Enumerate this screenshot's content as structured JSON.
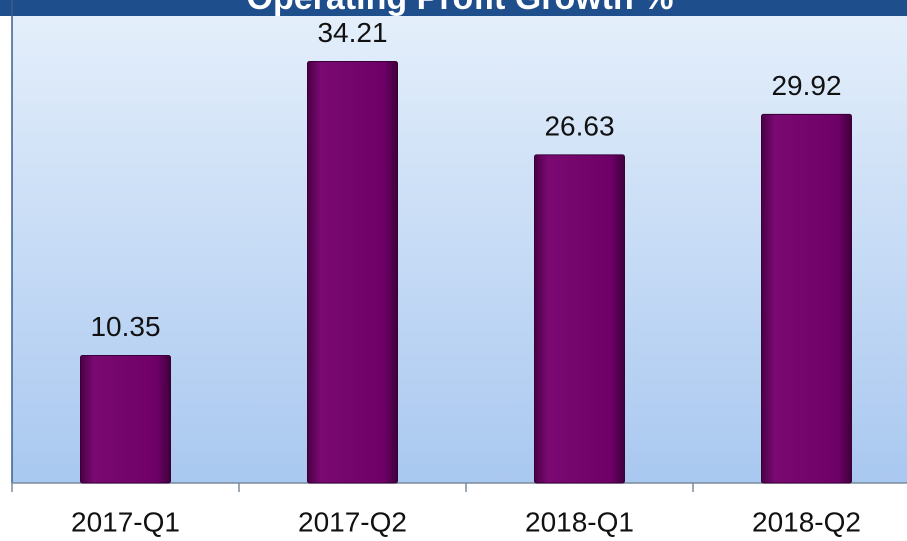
{
  "chart_data": {
    "type": "bar",
    "title": "Operating Profit Growth %",
    "categories": [
      "2017-Q1",
      "2017-Q2",
      "2018-Q1",
      "2018-Q2"
    ],
    "values": [
      10.35,
      34.21,
      26.63,
      29.92
    ],
    "color": "#6e0068",
    "ylim": [
      0,
      40
    ]
  }
}
